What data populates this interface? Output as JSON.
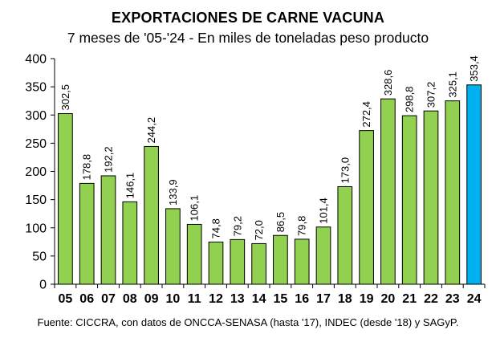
{
  "chart_data": {
    "type": "bar",
    "title": "EXPORTACIONES DE CARNE VACUNA",
    "subtitle": "7 meses de '05-'24 - En miles de toneladas peso producto",
    "source": "Fuente: CICCRA, con datos de ONCCA-SENASA (hasta '17), INDEC (desde '18) y SAGyP.",
    "categories": [
      "05",
      "06",
      "07",
      "08",
      "09",
      "10",
      "11",
      "12",
      "13",
      "14",
      "15",
      "16",
      "17",
      "18",
      "19",
      "20",
      "21",
      "22",
      "23",
      "24"
    ],
    "values": [
      302.5,
      178.8,
      192.2,
      146.1,
      244.2,
      133.9,
      106.1,
      74.8,
      79.2,
      72.0,
      86.5,
      79.8,
      101.4,
      173.0,
      272.4,
      328.6,
      298.8,
      307.2,
      325.1,
      353.4
    ],
    "data_labels": [
      "302,5",
      "178,8",
      "192,2",
      "146,1",
      "244,2",
      "133,9",
      "106,1",
      "74,8",
      "79,2",
      "72,0",
      "86,5",
      "79,8",
      "101,4",
      "173,0",
      "272,4",
      "328,6",
      "298,8",
      "307,2",
      "325,1",
      "353,4"
    ],
    "ylim": [
      0,
      400
    ],
    "yticks": [
      0,
      50,
      100,
      150,
      200,
      250,
      300,
      350,
      400
    ],
    "grid": false,
    "colors": {
      "bar": "#92d050",
      "highlight": "#00b0f0",
      "stroke": "#000000"
    },
    "highlight_index": 19
  }
}
